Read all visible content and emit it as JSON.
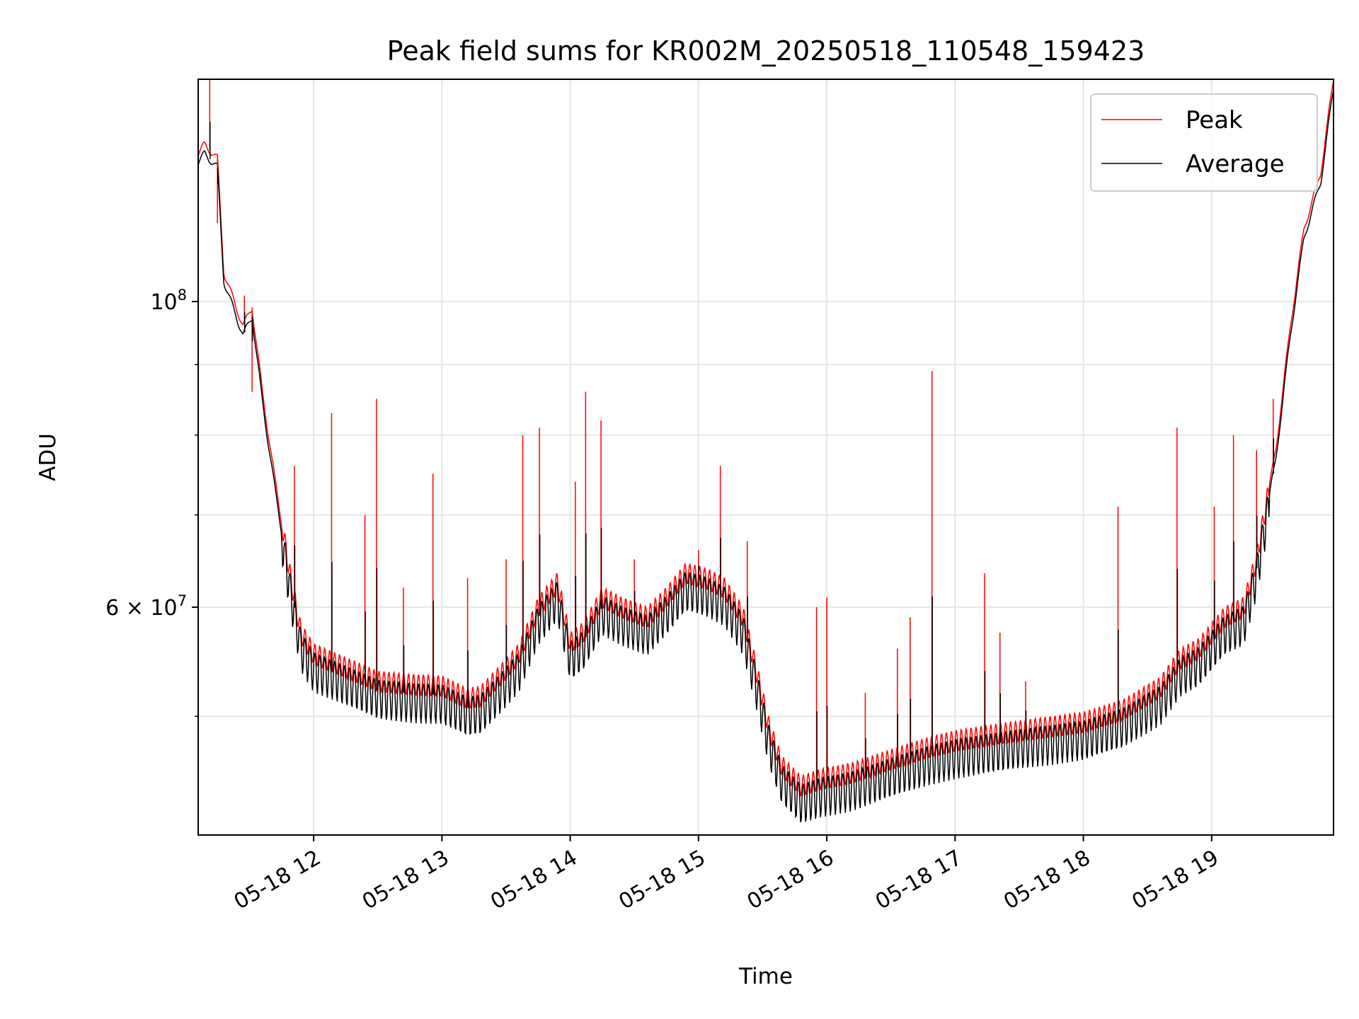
{
  "chart_data": {
    "type": "line",
    "title": "Peak field sums for KR002M_20250518_110548_159423",
    "xlabel": "Time",
    "ylabel": "ADU",
    "y_scale": "log",
    "x_unit": "hours of day 2025-05-18",
    "xlim": [
      11.1,
      19.95
    ],
    "ylim": [
      41000000,
      145000000
    ],
    "grid": true,
    "legend_position": "upper right",
    "x_ticks": [
      {
        "value": 12,
        "label": "05-18 12"
      },
      {
        "value": 13,
        "label": "05-18 13"
      },
      {
        "value": 14,
        "label": "05-18 14"
      },
      {
        "value": 15,
        "label": "05-18 15"
      },
      {
        "value": 16,
        "label": "05-18 16"
      },
      {
        "value": 17,
        "label": "05-18 17"
      },
      {
        "value": 18,
        "label": "05-18 18"
      },
      {
        "value": 19,
        "label": "05-18 19"
      }
    ],
    "y_major_ticks": [
      {
        "value": 100000000,
        "base": "10",
        "exp": "8"
      },
      {
        "value": 60000000,
        "mant": "6",
        "base": "10",
        "exp": "7"
      }
    ],
    "y_minor_ticks": [
      50000000,
      70000000,
      80000000,
      90000000
    ],
    "series": [
      {
        "name": "Peak",
        "color": "#ff0000",
        "baseline": [
          [
            11.1,
            128000000
          ],
          [
            11.15,
            130000000
          ],
          [
            11.25,
            127000000
          ],
          [
            11.3,
            105000000
          ],
          [
            11.38,
            100000000
          ],
          [
            11.45,
            96000000
          ],
          [
            11.52,
            99000000
          ],
          [
            11.6,
            86000000
          ],
          [
            11.7,
            74000000
          ],
          [
            11.82,
            63000000
          ],
          [
            11.9,
            57500000
          ],
          [
            12.0,
            55500000
          ],
          [
            12.2,
            54500000
          ],
          [
            12.5,
            53000000
          ],
          [
            12.8,
            52700000
          ],
          [
            13.0,
            52600000
          ],
          [
            13.2,
            51500000
          ],
          [
            13.3,
            51700000
          ],
          [
            13.45,
            53500000
          ],
          [
            13.6,
            55500000
          ],
          [
            13.75,
            60000000
          ],
          [
            13.9,
            62500000
          ],
          [
            14.0,
            56500000
          ],
          [
            14.1,
            57500000
          ],
          [
            14.25,
            61000000
          ],
          [
            14.4,
            60000000
          ],
          [
            14.6,
            59000000
          ],
          [
            14.75,
            61000000
          ],
          [
            14.9,
            63500000
          ],
          [
            15.05,
            63000000
          ],
          [
            15.2,
            62000000
          ],
          [
            15.35,
            59000000
          ],
          [
            15.45,
            54000000
          ],
          [
            15.55,
            49000000
          ],
          [
            15.65,
            46000000
          ],
          [
            15.8,
            44500000
          ],
          [
            15.95,
            45000000
          ],
          [
            16.2,
            45500000
          ],
          [
            16.5,
            46500000
          ],
          [
            16.8,
            47500000
          ],
          [
            17.0,
            48000000
          ],
          [
            17.5,
            48800000
          ],
          [
            18.0,
            49500000
          ],
          [
            18.3,
            50500000
          ],
          [
            18.6,
            52500000
          ],
          [
            18.75,
            55000000
          ],
          [
            18.9,
            56000000
          ],
          [
            19.1,
            59000000
          ],
          [
            19.25,
            60000000
          ],
          [
            19.35,
            65000000
          ],
          [
            19.5,
            78000000
          ],
          [
            19.62,
            97000000
          ],
          [
            19.72,
            113000000
          ],
          [
            19.85,
            124000000
          ],
          [
            19.95,
            145000000
          ]
        ],
        "spikes": [
          [
            11.19,
            145000000
          ],
          [
            11.25,
            114000000
          ],
          [
            11.46,
            101000000
          ],
          [
            11.52,
            86000000
          ],
          [
            11.58,
            88000000
          ],
          [
            11.85,
            76000000
          ],
          [
            12.14,
            83000000
          ],
          [
            12.4,
            70000000
          ],
          [
            12.49,
            85000000
          ],
          [
            12.7,
            62000000
          ],
          [
            12.93,
            75000000
          ],
          [
            13.2,
            63000000
          ],
          [
            13.5,
            65000000
          ],
          [
            13.63,
            80000000
          ],
          [
            13.76,
            81000000
          ],
          [
            14.04,
            74000000
          ],
          [
            14.12,
            86000000
          ],
          [
            14.24,
            82000000
          ],
          [
            14.5,
            65000000
          ],
          [
            15.0,
            66000000
          ],
          [
            15.17,
            76000000
          ],
          [
            15.38,
            67000000
          ],
          [
            15.92,
            60000000
          ],
          [
            16.0,
            61000000
          ],
          [
            16.3,
            52000000
          ],
          [
            16.55,
            56000000
          ],
          [
            16.65,
            59000000
          ],
          [
            16.82,
            89000000
          ],
          [
            17.23,
            63500000
          ],
          [
            17.35,
            57500000
          ],
          [
            17.55,
            53000000
          ],
          [
            18.27,
            71000000
          ],
          [
            18.73,
            81000000
          ],
          [
            19.02,
            71000000
          ],
          [
            19.17,
            80000000
          ],
          [
            19.35,
            78000000
          ],
          [
            19.48,
            85000000
          ]
        ]
      },
      {
        "name": "Average",
        "color": "#000000",
        "ratio": 0.985,
        "spike_fraction": 0.4
      }
    ]
  }
}
